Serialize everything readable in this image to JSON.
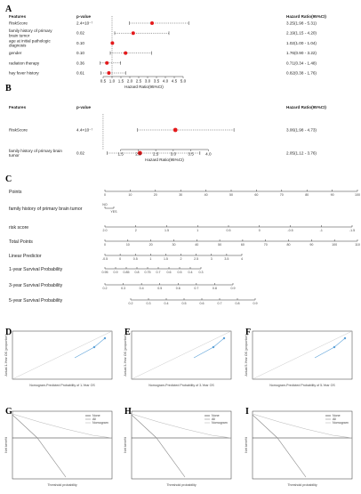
{
  "panel_letters": [
    "A",
    "B",
    "C",
    "D",
    "E",
    "F",
    "G",
    "H",
    "I"
  ],
  "chart_data": [
    {
      "id": "A",
      "type": "forest",
      "headers": {
        "features": "Features",
        "pvalue": "p-value",
        "hr": "Hazard Ratio(95%CI)"
      },
      "xlabel": "Hazard Ratio(95%CI)",
      "xticks": [
        0.5,
        1.0,
        1.5,
        2.0,
        2.5,
        3.0,
        3.5,
        4.0,
        4.5,
        5.0
      ],
      "xlim": [
        0.3,
        5.3
      ],
      "rows": [
        {
          "feature": "RiskScore",
          "p": "2.4×10⁻⁷",
          "hr": 3.25,
          "lo": 1.98,
          "hi": 5.31,
          "label": "3.25(1.98 - 5.31)"
        },
        {
          "feature": "family history of primary brain tumor",
          "p": "0.02",
          "hr": 2.19,
          "lo": 1.15,
          "hi": 4.2,
          "label": "2.19(1.15 - 4.20)"
        },
        {
          "feature": "age at initial pathologic diagnosis",
          "p": "0.10",
          "hr": 1.02,
          "lo": 1.0,
          "hi": 1.04,
          "label": "1.02(1.00 - 1.04)"
        },
        {
          "feature": "gender",
          "p": "0.10",
          "hr": 1.76,
          "lo": 0.9,
          "hi": 3.22,
          "label": "1.76(0.90 - 3.22)"
        },
        {
          "feature": "radiation therapy",
          "p": "0.36",
          "hr": 0.71,
          "lo": 0.34,
          "hi": 1.48,
          "label": "0.71(0.34 - 1.48)"
        },
        {
          "feature": "hay fever history",
          "p": "0.61",
          "hr": 0.82,
          "lo": 0.38,
          "hi": 1.76,
          "label": "0.82(0.38 - 1.76)"
        }
      ]
    },
    {
      "id": "B",
      "type": "forest",
      "headers": {
        "features": "Features",
        "pvalue": "p-value",
        "hr": "Hazard Ratio(95%CI)"
      },
      "xlabel": "Hazard Ratio(95%CI)",
      "xticks": [
        1.5,
        2.0,
        2.5,
        3.0,
        3.5,
        4.0
      ],
      "xlim": [
        0.9,
        4.6
      ],
      "rows": [
        {
          "feature": "RiskScore",
          "p": "4.4×10⁻⁷",
          "hr": 3.06,
          "lo": 1.98,
          "hi": 4.73,
          "label": "3.06(1.98 - 4.73)"
        },
        {
          "feature": "family history of primary brain tumor",
          "p": "0.02",
          "hr": 2.05,
          "lo": 1.12,
          "hi": 3.76,
          "label": "2.05(1.12 - 3.76)"
        }
      ]
    },
    {
      "id": "C",
      "type": "nomogram",
      "rows": [
        {
          "label": "Points",
          "ticks": [
            "0",
            "10",
            "20",
            "30",
            "40",
            "50",
            "60",
            "70",
            "80",
            "90",
            "100"
          ]
        },
        {
          "label": "family history of primary brain tumor",
          "ticks": [
            "NO",
            "YES"
          ]
        },
        {
          "label": "risk score",
          "ticks": [
            "2.0",
            "2",
            "1.5",
            "1",
            "0.5",
            "0",
            "-0.5",
            "-1",
            "-1.5"
          ]
        },
        {
          "label": "Total Points",
          "ticks": [
            "0",
            "10",
            "20",
            "30",
            "40",
            "50",
            "60",
            "70",
            "80",
            "90",
            "100",
            "110"
          ]
        },
        {
          "label": "Linear Predictor",
          "ticks": [
            "-0.5",
            "0",
            "0.5",
            "1",
            "1.5",
            "2",
            "2.5",
            "3",
            "3.5",
            "4"
          ]
        },
        {
          "label": "1-year Survival Probability",
          "ticks": [
            "0.95",
            "0.9",
            "0.85",
            "0.8",
            "0.75",
            "0.7",
            "0.6",
            "0.5",
            "0.4",
            "0.3"
          ]
        },
        {
          "label": "3-year Survival Probability",
          "ticks": [
            "0.2",
            "0.3",
            "0.4",
            "0.5",
            "0.6",
            "0.7",
            "0.8",
            "0.9"
          ]
        },
        {
          "label": "5-year Survival Probability",
          "ticks": [
            "0.2",
            "0.3",
            "0.4",
            "0.5",
            "0.6",
            "0.7",
            "0.8",
            "0.9"
          ]
        }
      ]
    },
    {
      "id": "D",
      "type": "calibration",
      "xlabel": "Nomogram-Predicted Probability of 1-Year OS",
      "ylabel": "Actual 1-Year OS (proportion)"
    },
    {
      "id": "E",
      "type": "calibration",
      "xlabel": "Nomogram-Predicted Probability of 3-Year OS",
      "ylabel": "Actual 3-Year OS (proportion)"
    },
    {
      "id": "F",
      "type": "calibration",
      "xlabel": "Nomogram-Predicted Probability of 5-Year OS",
      "ylabel": "Actual 5-Year OS (proportion)"
    },
    {
      "id": "G",
      "type": "decision-curve",
      "xlabel": "Threshold probability",
      "ylabel": "Net benefit",
      "legend": [
        "None",
        "All",
        "Nomogram"
      ]
    },
    {
      "id": "H",
      "type": "decision-curve",
      "xlabel": "Threshold probability",
      "ylabel": "Net benefit",
      "legend": [
        "None",
        "All",
        "Nomogram"
      ]
    },
    {
      "id": "I",
      "type": "decision-curve",
      "xlabel": "Threshold probability",
      "ylabel": "Net benefit",
      "legend": [
        "None",
        "All",
        "Nomogram"
      ]
    }
  ]
}
